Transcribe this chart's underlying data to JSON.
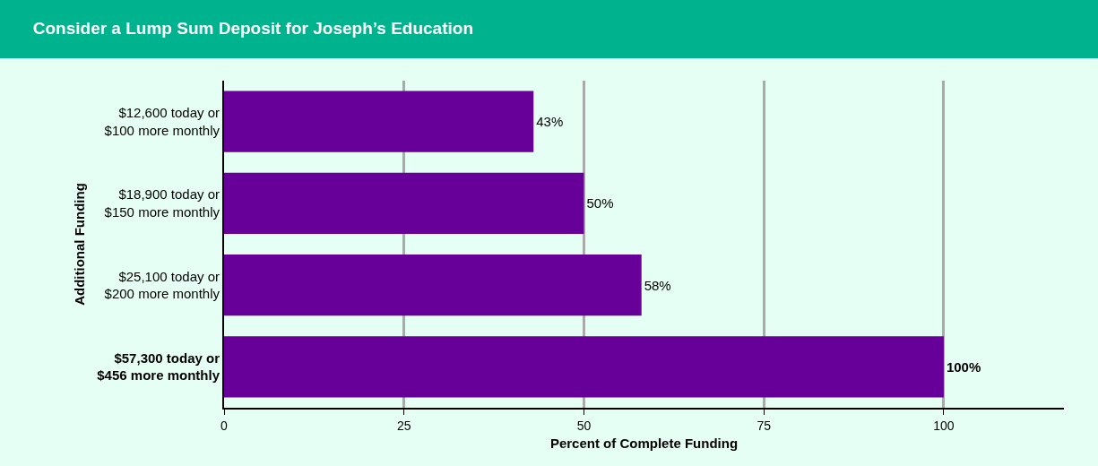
{
  "chart_data": {
    "type": "bar",
    "orientation": "horizontal",
    "title": "Consider a Lump Sum Deposit for Joseph’s Education",
    "xlabel": "Percent of Complete Funding",
    "ylabel": "Additional Funding",
    "categories": [
      "$12,600 today or\n$100 more monthly",
      "$18,900 today or\n$150 more monthly",
      "$25,100 today or\n$200 more monthly",
      "$57,300 today or\n$456 more monthly"
    ],
    "values": [
      43,
      50,
      58,
      100
    ],
    "value_labels": [
      "43%",
      "50%",
      "58%",
      "100%"
    ],
    "color": "#660099",
    "xlim": [
      0,
      116.7
    ],
    "xticks": [
      0,
      25,
      50,
      75,
      100
    ],
    "grid": "x",
    "legend": false
  }
}
